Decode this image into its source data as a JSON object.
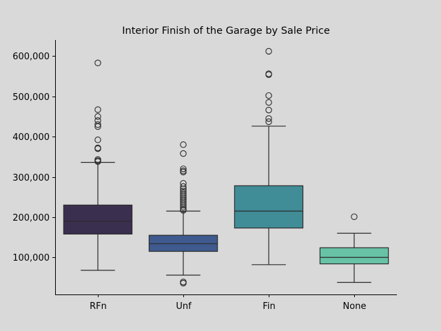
{
  "chart_data": {
    "type": "box",
    "title": "Interior Finish of the Garage by Sale Price",
    "xlabel": "",
    "ylabel": "",
    "ylim": [
      8000,
      640000
    ],
    "yticks": [
      100000,
      200000,
      300000,
      400000,
      500000,
      600000
    ],
    "ytick_labels": [
      "100,000",
      "200,000",
      "300,000",
      "400,000",
      "500,000",
      "600,000"
    ],
    "categories": [
      "RFn",
      "Unf",
      "Fin",
      "None"
    ],
    "grid": false,
    "background_color": "#d9d9d9",
    "boxes": [
      {
        "category": "RFn",
        "color": "#3b2f50",
        "whisker_low": 68000,
        "q1": 158000,
        "median": 190000,
        "q3": 230000,
        "whisker_high": 336000,
        "outliers": [
          583000,
          467000,
          450000,
          440000,
          430000,
          425000,
          392000,
          372000,
          370000,
          343000,
          340000,
          338000
        ]
      },
      {
        "category": "Unf",
        "color": "#3e5a8e",
        "whisker_low": 56000,
        "q1": 115000,
        "median": 134000,
        "q3": 155000,
        "whisker_high": 215000,
        "outliers": [
          380000,
          358000,
          320000,
          315000,
          312000,
          284000,
          276000,
          270000,
          265000,
          260000,
          255000,
          250000,
          245000,
          240000,
          235000,
          230000,
          225000,
          220000,
          217000,
          39000,
          36000
        ]
      },
      {
        "category": "Fin",
        "color": "#408c97",
        "whisker_low": 82000,
        "q1": 173000,
        "median": 215000,
        "q3": 278000,
        "whisker_high": 426000,
        "outliers": [
          612000,
          556000,
          554000,
          502000,
          485000,
          466000,
          445000,
          437000
        ]
      },
      {
        "category": "None",
        "color": "#68c2a6",
        "whisker_low": 38000,
        "q1": 84000,
        "median": 100000,
        "q3": 124000,
        "whisker_high": 160000,
        "outliers": [
          201000
        ]
      }
    ]
  }
}
